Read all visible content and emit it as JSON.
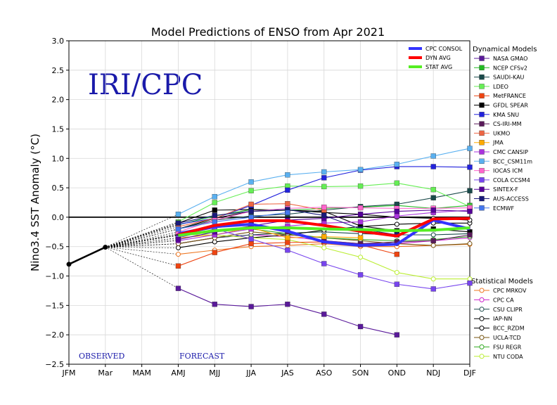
{
  "chart_data": {
    "type": "line",
    "title": "Model Predictions of ENSO from Apr 2021",
    "ylabel": "Nino3.4 SST Anomaly (°C)",
    "xlabel": "",
    "categories": [
      "JFM",
      "Mar",
      "MAM",
      "AMJ",
      "MJJ",
      "JJA",
      "JAS",
      "ASO",
      "SON",
      "OND",
      "NDJ",
      "DJF"
    ],
    "ylim": [
      -2.5,
      3.0
    ],
    "yticks": [
      "3.0",
      "2.5",
      "2.0",
      "1.5",
      "1.0",
      "0.5",
      "0.0",
      "−0.5",
      "−1.0",
      "−1.5",
      "−2.0",
      "−2.5"
    ],
    "grid": true,
    "logo": "IRI/CPC",
    "observed_label": "OBSERVED",
    "forecast_label": "FORECAST",
    "observed": [
      -0.8,
      -0.51
    ],
    "consensus": [
      {
        "name": "CPC CONSOL",
        "color": "#3333ff",
        "values": [
          null,
          null,
          null,
          -0.28,
          -0.16,
          -0.12,
          -0.24,
          -0.42,
          -0.48,
          -0.46,
          -0.05,
          -0.2
        ]
      },
      {
        "name": "DYN AVG",
        "color": "#ff0000",
        "values": [
          null,
          null,
          null,
          -0.3,
          -0.14,
          -0.06,
          -0.06,
          -0.14,
          -0.24,
          -0.32,
          -0.03,
          -0.02
        ]
      },
      {
        "name": "STAT AVG",
        "color": "#55ee22",
        "values": [
          null,
          null,
          null,
          -0.31,
          -0.23,
          -0.18,
          -0.18,
          -0.2,
          -0.21,
          -0.23,
          -0.22,
          -0.18
        ]
      }
    ],
    "dynamical_header": "Dynamical Models",
    "dynamical": [
      {
        "name": "NASA GMAO",
        "color": "#5a1a9a",
        "values": [
          null,
          null,
          null,
          -1.21,
          -1.48,
          -1.52,
          -1.48,
          -1.65,
          -1.86,
          -2.0,
          null,
          null
        ]
      },
      {
        "name": "NCEP CFSv2",
        "color": "#22bb22",
        "values": [
          null,
          null,
          null,
          -0.13,
          0.02,
          0.13,
          0.12,
          0.15,
          0.17,
          0.2,
          0.15,
          0.2
        ]
      },
      {
        "name": "SAUDI-KAU",
        "color": "#1a4a4a",
        "values": [
          null,
          null,
          null,
          -0.2,
          -0.05,
          0.02,
          0.05,
          0.12,
          0.18,
          0.22,
          0.33,
          0.45
        ]
      },
      {
        "name": "LDEO",
        "color": "#66ee55",
        "values": [
          null,
          null,
          null,
          -0.08,
          0.25,
          0.45,
          0.53,
          0.52,
          0.53,
          0.58,
          0.47,
          0.18
        ]
      },
      {
        "name": "MetFRANCE",
        "color": "#ee4411",
        "values": [
          null,
          null,
          null,
          -0.83,
          -0.6,
          -0.45,
          -0.43,
          -0.42,
          -0.47,
          -0.63,
          null,
          null
        ]
      },
      {
        "name": "GFDL SPEAR",
        "color": "#000000",
        "values": [
          null,
          null,
          null,
          -0.1,
          0.12,
          0.13,
          0.12,
          0.1,
          -0.15,
          -0.23,
          -0.2,
          -0.25
        ]
      },
      {
        "name": "KMA SNU",
        "color": "#2222dd",
        "values": [
          null,
          null,
          null,
          -0.12,
          -0.02,
          0.2,
          0.46,
          0.67,
          0.8,
          0.86,
          0.86,
          0.85
        ]
      },
      {
        "name": "CS-IRI-MM",
        "color": "#5a1a5a",
        "values": [
          null,
          null,
          null,
          -0.3,
          -0.18,
          -0.12,
          -0.25,
          -0.4,
          -0.45,
          -0.42,
          -0.4,
          -0.3
        ]
      },
      {
        "name": "UKMO",
        "color": "#ee6644",
        "values": [
          null,
          null,
          null,
          -0.16,
          -0.02,
          0.22,
          0.23,
          0.12,
          null,
          null,
          null,
          null
        ]
      },
      {
        "name": "JMA",
        "color": "#ffaa00",
        "values": [
          null,
          null,
          null,
          -0.35,
          -0.3,
          -0.18,
          -0.35,
          -0.33,
          -0.35,
          null,
          null,
          null
        ]
      },
      {
        "name": "CMC CANSIP",
        "color": "#aa33dd",
        "values": [
          null,
          null,
          null,
          -0.4,
          -0.3,
          -0.2,
          -0.15,
          -0.1,
          -0.08,
          0.02,
          0.08,
          0.12
        ]
      },
      {
        "name": "BCC_CSM11m",
        "color": "#5ab0f0",
        "values": [
          null,
          null,
          null,
          0.05,
          0.35,
          0.6,
          0.72,
          0.77,
          0.81,
          0.9,
          1.04,
          1.17
        ]
      },
      {
        "name": "IOCAS ICM",
        "color": "#ff66cc",
        "values": [
          null,
          null,
          null,
          -0.25,
          -0.05,
          0.1,
          0.15,
          0.17,
          0.16,
          0.15,
          0.15,
          0.16
        ]
      },
      {
        "name": "COLA CCSM4",
        "color": "#7744ee",
        "values": [
          null,
          null,
          null,
          -0.35,
          -0.2,
          -0.37,
          -0.56,
          -0.79,
          -0.98,
          -1.14,
          -1.22,
          -1.12
        ]
      },
      {
        "name": "SINTEX-F",
        "color": "#550099",
        "values": [
          null,
          null,
          null,
          -0.38,
          -0.25,
          -0.15,
          -0.05,
          -0.02,
          0.05,
          0.1,
          0.12,
          0.1
        ]
      },
      {
        "name": "AUS-ACCESS",
        "color": "#1a1a7a",
        "values": [
          null,
          null,
          null,
          -0.1,
          0.03,
          0.1,
          0.13,
          0.03,
          -0.2,
          -0.3,
          null,
          null
        ]
      },
      {
        "name": "ECMWF",
        "color": "#4477ee",
        "values": [
          null,
          null,
          null,
          -0.2,
          -0.08,
          0.0,
          0.08,
          null,
          null,
          null,
          null,
          null
        ]
      }
    ],
    "statistical_header": "Statistical Models",
    "statistical": [
      {
        "name": "CPC MRKOV",
        "color": "#ee7722",
        "values": [
          null,
          null,
          null,
          -0.63,
          -0.56,
          -0.5,
          -0.48,
          -0.45,
          -0.5,
          -0.5,
          -0.48,
          -0.46
        ]
      },
      {
        "name": "CPC CA",
        "color": "#cc22cc",
        "values": [
          null,
          null,
          null,
          -0.45,
          -0.35,
          -0.3,
          -0.33,
          -0.4,
          -0.45,
          -0.45,
          -0.4,
          -0.35
        ]
      },
      {
        "name": "CSU CLIPR",
        "color": "#1a4a4a",
        "values": [
          null,
          null,
          null,
          -0.45,
          -0.35,
          -0.3,
          -0.27,
          -0.25,
          -0.28,
          -0.3,
          -0.3,
          -0.28
        ]
      },
      {
        "name": "IAP-NN",
        "color": "#000000",
        "values": [
          null,
          null,
          null,
          -0.52,
          -0.42,
          -0.35,
          -0.3,
          -0.22,
          -0.16,
          -0.12,
          -0.1,
          -0.1
        ]
      },
      {
        "name": "BCC_RZDM",
        "color": "#000000",
        "values": [
          null,
          null,
          null,
          -0.2,
          -0.02,
          0.1,
          0.12,
          0.08,
          0.05,
          0.0,
          -0.02,
          -0.05
        ]
      },
      {
        "name": "UCLA-TCD",
        "color": "#775511",
        "values": [
          null,
          null,
          null,
          -0.45,
          -0.35,
          -0.25,
          -0.3,
          -0.35,
          -0.4,
          -0.45,
          -0.48,
          -0.45
        ]
      },
      {
        "name": "FSU REGR",
        "color": "#33aa22",
        "values": [
          null,
          null,
          null,
          -0.3,
          -0.25,
          -0.2,
          -0.28,
          -0.35,
          -0.38,
          -0.4,
          -0.38,
          -0.33
        ]
      },
      {
        "name": "NTU CODA",
        "color": "#bbee33",
        "values": [
          null,
          null,
          null,
          -0.3,
          -0.3,
          -0.35,
          -0.38,
          -0.52,
          -0.68,
          -0.94,
          -1.05,
          -1.05
        ]
      }
    ]
  }
}
